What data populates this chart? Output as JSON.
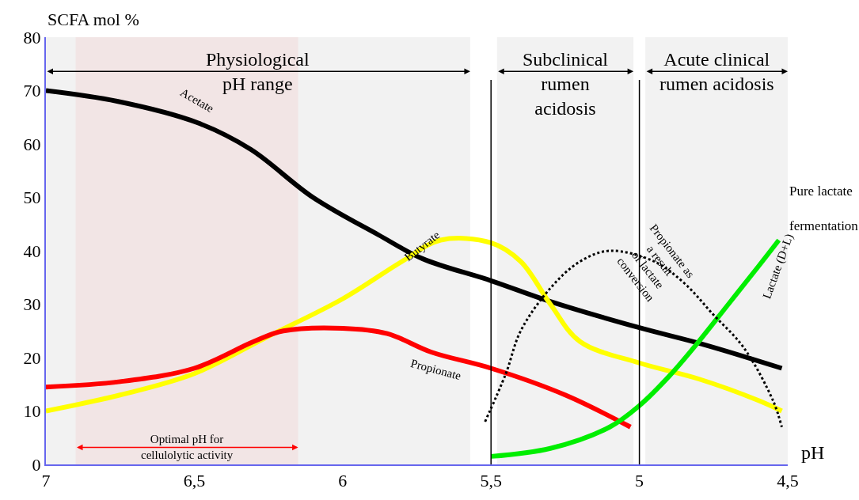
{
  "chart_data": {
    "type": "line",
    "xlabel": "pH",
    "ylabel": "SCFA mol %",
    "xlim": [
      7,
      4.5
    ],
    "xticks": [
      7,
      {
        "value": 6.5,
        "label": "6,5"
      },
      6,
      {
        "value": 5.5,
        "label": "5,5"
      },
      5,
      {
        "value": 4.5,
        "label": "4,5"
      }
    ],
    "ylim": [
      0,
      80
    ],
    "yticks": [
      0,
      10,
      20,
      30,
      40,
      50,
      60,
      70,
      80
    ],
    "grid": false,
    "legend": false,
    "series": [
      {
        "name": "Acetate",
        "color": "#000000",
        "x": [
          7,
          6.76,
          6.49,
          6.31,
          6.1,
          5.88,
          5.73,
          5.5,
          5.3,
          5,
          4.78,
          4.52
        ],
        "values": [
          70,
          68,
          64,
          59,
          50,
          43,
          38.5,
          34.4,
          30.5,
          25.6,
          22.4,
          18
        ]
      },
      {
        "name": "Butyrate",
        "color": "#ffff00",
        "x": [
          7,
          6.75,
          6.5,
          6.25,
          6,
          5.8,
          5.67,
          5.5,
          5.4,
          5.3,
          5.2,
          5,
          4.8,
          4.6,
          4.52
        ],
        "values": [
          10,
          13,
          17,
          24,
          31,
          38,
          42,
          41.5,
          38,
          30,
          23,
          19,
          16,
          12,
          10
        ]
      },
      {
        "name": "Propionate",
        "color": "#ff0000",
        "x": [
          7,
          6.75,
          6.5,
          6.3,
          6.2,
          6,
          5.85,
          5.7,
          5.5,
          5.25,
          5.03
        ],
        "values": [
          14.5,
          15.5,
          18,
          23,
          25,
          25.5,
          24.5,
          21,
          18,
          13,
          7
        ]
      },
      {
        "name": "Lactate (D+L)",
        "color": "#00ee00",
        "x": [
          5.5,
          5.3,
          5.1,
          5,
          4.9,
          4.8,
          4.7,
          4.6,
          4.53
        ],
        "values": [
          1.5,
          3,
          7,
          11,
          16.5,
          23,
          30,
          37,
          42
        ]
      },
      {
        "name": "Propionate as a result of lactate conversion",
        "color": "#000000",
        "line_style": "dotted",
        "x": [
          5.52,
          5.45,
          5.4,
          5.3,
          5.2,
          5.1,
          4.95,
          4.85,
          4.75,
          4.65,
          4.55,
          4.52
        ],
        "values": [
          8,
          17,
          25,
          33,
          38,
          40,
          38,
          34,
          28,
          22,
          12,
          7
        ]
      }
    ],
    "ref_lines": [
      {
        "axis": "x",
        "value": 5.5,
        "color": "#000000"
      },
      {
        "axis": "x",
        "value": 5,
        "color": "#000000"
      }
    ],
    "bands": [
      {
        "axis": "x",
        "from": 7,
        "to": 5.57,
        "label": "Physiological\npH range",
        "color": "#000000"
      },
      {
        "axis": "x",
        "from": 5.48,
        "to": 5.02,
        "label": "Subclinical\nrumen\nacidosis",
        "color": "#000000"
      },
      {
        "axis": "x",
        "from": 4.98,
        "to": 4.5,
        "label": "Acute clinical\nrumen acidosis",
        "color": "#000000"
      },
      {
        "axis": "x",
        "from": 6.9,
        "to": 6.15,
        "label": "Optimal pH for\ncellulolytic activity",
        "color": "#ff0000"
      }
    ],
    "annotations": [
      "Pure lactate\nfermentation"
    ]
  }
}
